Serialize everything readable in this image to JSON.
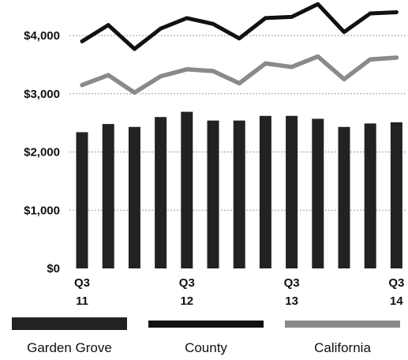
{
  "chart_data": {
    "type": "bar",
    "ylim": [
      0,
      4600
    ],
    "y_ticks": [
      {
        "value": 0,
        "label": "$0"
      },
      {
        "value": 1000,
        "label": "$1,000"
      },
      {
        "value": 2000,
        "label": "$2,000"
      },
      {
        "value": 3000,
        "label": "$3,000"
      },
      {
        "value": 4000,
        "label": "$4,000"
      }
    ],
    "x_ticks": [
      {
        "index": 0,
        "quarter": "Q3",
        "year": "11"
      },
      {
        "index": 4,
        "quarter": "Q3",
        "year": "12"
      },
      {
        "index": 8,
        "quarter": "Q3",
        "year": "13"
      },
      {
        "index": 12,
        "quarter": "Q3",
        "year": "14"
      }
    ],
    "grid": "horizontal dotted",
    "legend_position": "bottom",
    "series": [
      {
        "name": "Garden Grove",
        "type": "bar",
        "color": "#222222",
        "values": [
          2340,
          2480,
          2430,
          2600,
          2690,
          2540,
          2540,
          2620,
          2620,
          2570,
          2430,
          2490,
          2510
        ]
      },
      {
        "name": "County",
        "type": "line",
        "color": "#111111",
        "values": [
          3900,
          4180,
          3770,
          4120,
          4300,
          4200,
          3950,
          4300,
          4320,
          4540,
          4060,
          4380,
          4400
        ]
      },
      {
        "name": "California",
        "type": "line",
        "color": "#8a8a8a",
        "values": [
          3150,
          3320,
          3020,
          3300,
          3420,
          3390,
          3180,
          3520,
          3460,
          3640,
          3250,
          3590,
          3620
        ]
      }
    ]
  }
}
